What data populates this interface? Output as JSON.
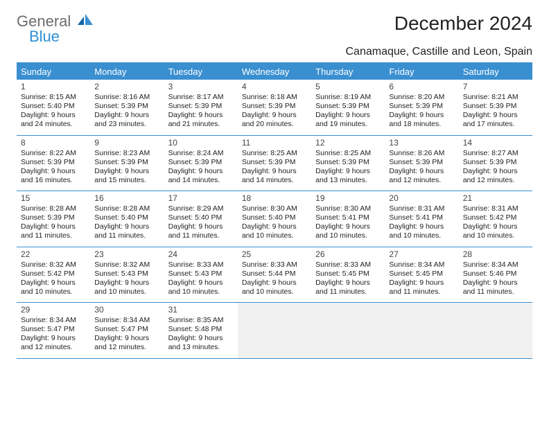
{
  "brand": {
    "general": "General",
    "blue": "Blue"
  },
  "title": "December 2024",
  "location": "Canamaque, Castille and Leon, Spain",
  "accent_color": "#3a8fd0",
  "empty_bg": "#f1f1f1",
  "day_names": [
    "Sunday",
    "Monday",
    "Tuesday",
    "Wednesday",
    "Thursday",
    "Friday",
    "Saturday"
  ],
  "days": [
    {
      "n": "1",
      "sr": "8:15 AM",
      "ss": "5:40 PM",
      "dl": "9 hours and 24 minutes."
    },
    {
      "n": "2",
      "sr": "8:16 AM",
      "ss": "5:39 PM",
      "dl": "9 hours and 23 minutes."
    },
    {
      "n": "3",
      "sr": "8:17 AM",
      "ss": "5:39 PM",
      "dl": "9 hours and 21 minutes."
    },
    {
      "n": "4",
      "sr": "8:18 AM",
      "ss": "5:39 PM",
      "dl": "9 hours and 20 minutes."
    },
    {
      "n": "5",
      "sr": "8:19 AM",
      "ss": "5:39 PM",
      "dl": "9 hours and 19 minutes."
    },
    {
      "n": "6",
      "sr": "8:20 AM",
      "ss": "5:39 PM",
      "dl": "9 hours and 18 minutes."
    },
    {
      "n": "7",
      "sr": "8:21 AM",
      "ss": "5:39 PM",
      "dl": "9 hours and 17 minutes."
    },
    {
      "n": "8",
      "sr": "8:22 AM",
      "ss": "5:39 PM",
      "dl": "9 hours and 16 minutes."
    },
    {
      "n": "9",
      "sr": "8:23 AM",
      "ss": "5:39 PM",
      "dl": "9 hours and 15 minutes."
    },
    {
      "n": "10",
      "sr": "8:24 AM",
      "ss": "5:39 PM",
      "dl": "9 hours and 14 minutes."
    },
    {
      "n": "11",
      "sr": "8:25 AM",
      "ss": "5:39 PM",
      "dl": "9 hours and 14 minutes."
    },
    {
      "n": "12",
      "sr": "8:25 AM",
      "ss": "5:39 PM",
      "dl": "9 hours and 13 minutes."
    },
    {
      "n": "13",
      "sr": "8:26 AM",
      "ss": "5:39 PM",
      "dl": "9 hours and 12 minutes."
    },
    {
      "n": "14",
      "sr": "8:27 AM",
      "ss": "5:39 PM",
      "dl": "9 hours and 12 minutes."
    },
    {
      "n": "15",
      "sr": "8:28 AM",
      "ss": "5:39 PM",
      "dl": "9 hours and 11 minutes."
    },
    {
      "n": "16",
      "sr": "8:28 AM",
      "ss": "5:40 PM",
      "dl": "9 hours and 11 minutes."
    },
    {
      "n": "17",
      "sr": "8:29 AM",
      "ss": "5:40 PM",
      "dl": "9 hours and 11 minutes."
    },
    {
      "n": "18",
      "sr": "8:30 AM",
      "ss": "5:40 PM",
      "dl": "9 hours and 10 minutes."
    },
    {
      "n": "19",
      "sr": "8:30 AM",
      "ss": "5:41 PM",
      "dl": "9 hours and 10 minutes."
    },
    {
      "n": "20",
      "sr": "8:31 AM",
      "ss": "5:41 PM",
      "dl": "9 hours and 10 minutes."
    },
    {
      "n": "21",
      "sr": "8:31 AM",
      "ss": "5:42 PM",
      "dl": "9 hours and 10 minutes."
    },
    {
      "n": "22",
      "sr": "8:32 AM",
      "ss": "5:42 PM",
      "dl": "9 hours and 10 minutes."
    },
    {
      "n": "23",
      "sr": "8:32 AM",
      "ss": "5:43 PM",
      "dl": "9 hours and 10 minutes."
    },
    {
      "n": "24",
      "sr": "8:33 AM",
      "ss": "5:43 PM",
      "dl": "9 hours and 10 minutes."
    },
    {
      "n": "25",
      "sr": "8:33 AM",
      "ss": "5:44 PM",
      "dl": "9 hours and 10 minutes."
    },
    {
      "n": "26",
      "sr": "8:33 AM",
      "ss": "5:45 PM",
      "dl": "9 hours and 11 minutes."
    },
    {
      "n": "27",
      "sr": "8:34 AM",
      "ss": "5:45 PM",
      "dl": "9 hours and 11 minutes."
    },
    {
      "n": "28",
      "sr": "8:34 AM",
      "ss": "5:46 PM",
      "dl": "9 hours and 11 minutes."
    },
    {
      "n": "29",
      "sr": "8:34 AM",
      "ss": "5:47 PM",
      "dl": "9 hours and 12 minutes."
    },
    {
      "n": "30",
      "sr": "8:34 AM",
      "ss": "5:47 PM",
      "dl": "9 hours and 12 minutes."
    },
    {
      "n": "31",
      "sr": "8:35 AM",
      "ss": "5:48 PM",
      "dl": "9 hours and 13 minutes."
    }
  ],
  "labels": {
    "sunrise": "Sunrise:",
    "sunset": "Sunset:",
    "daylight": "Daylight:"
  },
  "start_weekday": 0,
  "trailing_blanks": 4
}
